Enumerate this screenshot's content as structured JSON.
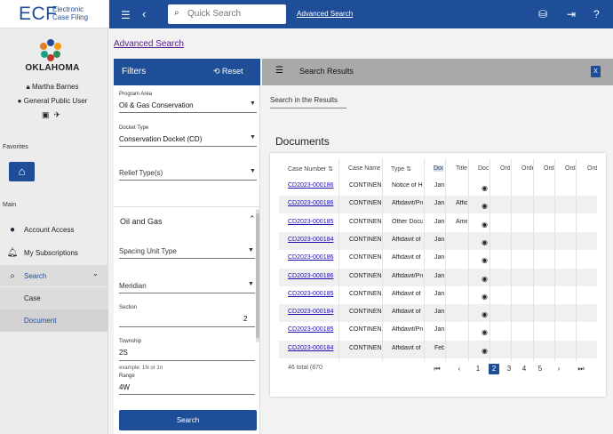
{
  "app": {
    "brand": "ECF",
    "brand_sub1": "Electronic",
    "brand_sub2": "Case Filing",
    "state": "OKLAHOMA"
  },
  "user": {
    "name": "Martha Barnes",
    "role": "General Public User"
  },
  "nav": {
    "favorites_label": "Favorites",
    "main_label": "Main",
    "items": [
      {
        "label": "Account Access",
        "icon": "account-icon"
      },
      {
        "label": "My Subscriptions",
        "icon": "bell-icon"
      },
      {
        "label": "Search",
        "icon": "search-icon"
      }
    ],
    "sub_items": [
      {
        "label": "Case"
      },
      {
        "label": "Document"
      }
    ]
  },
  "topbar": {
    "quick_search_placeholder": "Quick Search",
    "advanced_search": "Advanced Search"
  },
  "content": {
    "advanced_search_link": "Advanced Search"
  },
  "filters": {
    "title": "Filters",
    "reset": "Reset",
    "program_area_label": "Program Area",
    "program_area_value": "Oil & Gas Conservation",
    "docket_type_label": "Docket Type",
    "docket_type_value": "Conservation Docket (CD)",
    "relief_types_label": "Relief Type(s)",
    "section_title": "Oil and Gas",
    "spacing_unit_label": "Spacing Unit Type",
    "meridian_label": "Meridian",
    "section_label": "Section",
    "section_value": "2",
    "township_label": "Township",
    "township_value": "2S",
    "township_hint": "example: 1N or 1n",
    "range_label": "Range",
    "range_value": "4W",
    "search_button": "Search"
  },
  "results": {
    "title": "Search Results",
    "search_in_results": "Search in the Results",
    "documents_title": "Documents",
    "columns": [
      "Case Number",
      "Case Name",
      "Type",
      "Doc",
      "Title",
      "Doc",
      "Order",
      "Order",
      "Order",
      "Order",
      "Order"
    ],
    "rows": [
      {
        "case": "CD2023-000186",
        "name": "CONTINENT",
        "type": "Notice of He",
        "date": "Jan",
        "title": ""
      },
      {
        "case": "CD2023-000186",
        "name": "CONTINENT",
        "type": "Affidavit/Pro",
        "date": "Jan",
        "title": "Affid"
      },
      {
        "case": "CD2023-000185",
        "name": "CONTINENT",
        "type": "Other Docum",
        "date": "Jan",
        "title": "Ame"
      },
      {
        "case": "CD2023-000184",
        "name": "CONTINENT",
        "type": "Affidavit of I",
        "date": "Jan",
        "title": ""
      },
      {
        "case": "CD2023-000186",
        "name": "CONTINENT",
        "type": "Affidavit of I",
        "date": "Jan",
        "title": ""
      },
      {
        "case": "CD2023-000186",
        "name": "CONTINENT",
        "type": "Affidavit/Pro",
        "date": "Jan",
        "title": ""
      },
      {
        "case": "CD2023-000185",
        "name": "CONTINENT",
        "type": "Affidavit of I",
        "date": "Jan",
        "title": ""
      },
      {
        "case": "CD2023-000184",
        "name": "CONTINENT",
        "type": "Affidavit of I",
        "date": "Jan",
        "title": ""
      },
      {
        "case": "CD2023-000185",
        "name": "CONTINENT",
        "type": "Affidavit/Pro",
        "date": "Jan",
        "title": ""
      },
      {
        "case": "CD2023-000184",
        "name": "CONTINENT",
        "type": "Affidavit of I",
        "date": "Feb",
        "title": ""
      }
    ],
    "total": "46 total (870",
    "pages": [
      "1",
      "2",
      "3",
      "4",
      "5"
    ],
    "current_page": "2"
  }
}
